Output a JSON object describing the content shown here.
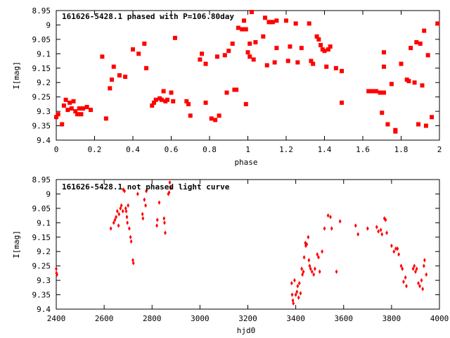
{
  "chart_data": [
    {
      "type": "scatter",
      "title": "161626-5428.1 phased with P=106.80day",
      "xlabel": "phase",
      "ylabel": "I[mag]",
      "xlim": [
        0,
        2
      ],
      "ylim": [
        9.4,
        8.95
      ],
      "y_reversed": true,
      "grid": false,
      "xticks": [
        "0",
        "0.2",
        "0.4",
        "0.6",
        "0.8",
        "1",
        "1.2",
        "1.4",
        "1.6",
        "1.8",
        "2"
      ],
      "xtick_values": [
        0,
        0.2,
        0.4,
        0.6,
        0.8,
        1.0,
        1.2,
        1.4,
        1.6,
        1.8,
        2.0
      ],
      "yticks": [
        "8.95",
        "9",
        "9.05",
        "9.1",
        "9.15",
        "9.2",
        "9.25",
        "9.3",
        "9.35",
        "9.4"
      ],
      "ytick_values": [
        8.95,
        9.0,
        9.05,
        9.1,
        9.15,
        9.2,
        9.25,
        9.3,
        9.35,
        9.4
      ],
      "series": [
        {
          "color": "#ff0000",
          "marker": "square",
          "points": [
            [
              0.0,
              9.32
            ],
            [
              0.01,
              9.31
            ],
            [
              0.03,
              9.345
            ],
            [
              0.04,
              9.28
            ],
            [
              0.05,
              9.26
            ],
            [
              0.06,
              9.295
            ],
            [
              0.07,
              9.27
            ],
            [
              0.08,
              9.29
            ],
            [
              0.09,
              9.265
            ],
            [
              0.1,
              9.3
            ],
            [
              0.11,
              9.31
            ],
            [
              0.12,
              9.29
            ],
            [
              0.13,
              9.31
            ],
            [
              0.14,
              9.29
            ],
            [
              0.16,
              9.285
            ],
            [
              0.18,
              9.295
            ],
            [
              0.24,
              9.11
            ],
            [
              0.26,
              9.325
            ],
            [
              0.28,
              9.22
            ],
            [
              0.29,
              9.19
            ],
            [
              0.3,
              9.145
            ],
            [
              0.33,
              9.175
            ],
            [
              0.36,
              9.18
            ],
            [
              0.4,
              9.085
            ],
            [
              0.43,
              9.1
            ],
            [
              0.46,
              9.065
            ],
            [
              0.47,
              9.15
            ],
            [
              0.5,
              9.28
            ],
            [
              0.51,
              9.27
            ],
            [
              0.52,
              9.26
            ],
            [
              0.54,
              9.255
            ],
            [
              0.55,
              9.26
            ],
            [
              0.56,
              9.23
            ],
            [
              0.57,
              9.265
            ],
            [
              0.58,
              9.26
            ],
            [
              0.6,
              9.235
            ],
            [
              0.61,
              9.265
            ],
            [
              0.62,
              9.045
            ],
            [
              0.68,
              9.265
            ],
            [
              0.69,
              9.275
            ],
            [
              0.7,
              9.315
            ],
            [
              0.75,
              9.12
            ],
            [
              0.76,
              9.1
            ],
            [
              0.78,
              9.135
            ],
            [
              0.78,
              9.27
            ],
            [
              0.81,
              9.325
            ],
            [
              0.83,
              9.33
            ],
            [
              0.84,
              9.11
            ],
            [
              0.85,
              9.315
            ],
            [
              0.88,
              9.105
            ],
            [
              0.89,
              9.235
            ],
            [
              0.9,
              9.09
            ],
            [
              0.92,
              9.065
            ],
            [
              0.93,
              9.225
            ],
            [
              0.94,
              9.225
            ],
            [
              0.95,
              9.01
            ],
            [
              0.97,
              9.015
            ],
            [
              0.98,
              8.985
            ],
            [
              0.99,
              9.015
            ],
            [
              0.99,
              9.275
            ],
            [
              1.0,
              9.095
            ],
            [
              1.01,
              9.065
            ],
            [
              1.01,
              9.11
            ],
            [
              1.02,
              8.955
            ],
            [
              1.03,
              9.12
            ],
            [
              1.04,
              9.06
            ],
            [
              1.08,
              9.04
            ],
            [
              1.09,
              8.975
            ],
            [
              1.1,
              9.14
            ],
            [
              1.11,
              8.99
            ],
            [
              1.12,
              8.99
            ],
            [
              1.13,
              8.99
            ],
            [
              1.14,
              9.13
            ],
            [
              1.15,
              9.08
            ],
            [
              1.15,
              8.985
            ],
            [
              1.2,
              8.985
            ],
            [
              1.21,
              9.125
            ],
            [
              1.22,
              9.075
            ],
            [
              1.25,
              8.995
            ],
            [
              1.26,
              9.13
            ],
            [
              1.28,
              9.08
            ],
            [
              1.32,
              8.995
            ],
            [
              1.33,
              9.125
            ],
            [
              1.34,
              9.135
            ],
            [
              1.36,
              9.04
            ],
            [
              1.37,
              9.05
            ],
            [
              1.38,
              9.07
            ],
            [
              1.39,
              9.085
            ],
            [
              1.4,
              9.09
            ],
            [
              1.41,
              9.145
            ],
            [
              1.42,
              9.085
            ],
            [
              1.43,
              9.075
            ],
            [
              1.46,
              9.15
            ],
            [
              1.49,
              9.27
            ],
            [
              1.49,
              9.16
            ],
            [
              1.63,
              9.23
            ],
            [
              1.64,
              9.23
            ],
            [
              1.65,
              9.23
            ],
            [
              1.67,
              9.23
            ],
            [
              1.69,
              9.235
            ],
            [
              1.7,
              9.305
            ],
            [
              1.71,
              9.235
            ],
            [
              1.71,
              9.145
            ],
            [
              1.71,
              9.095
            ],
            [
              1.73,
              9.345
            ],
            [
              1.75,
              9.205
            ],
            [
              1.77,
              9.365
            ],
            [
              1.77,
              9.37
            ],
            [
              1.8,
              9.135
            ],
            [
              1.83,
              9.19
            ],
            [
              1.84,
              9.195
            ],
            [
              1.85,
              9.08
            ],
            [
              1.87,
              9.2
            ],
            [
              1.88,
              9.06
            ],
            [
              1.89,
              9.345
            ],
            [
              1.9,
              9.065
            ],
            [
              1.91,
              9.21
            ],
            [
              1.92,
              9.02
            ],
            [
              1.93,
              9.35
            ],
            [
              1.94,
              9.105
            ],
            [
              1.96,
              9.32
            ],
            [
              1.99,
              8.995
            ]
          ]
        }
      ]
    },
    {
      "type": "scatter",
      "title": "161626-5428.1 not phased light curve",
      "xlabel": "hjd0",
      "ylabel": "I[mag]",
      "xlim": [
        2400,
        4000
      ],
      "ylim": [
        9.4,
        8.95
      ],
      "y_reversed": true,
      "grid": false,
      "xticks": [
        "2400",
        "2600",
        "2800",
        "3000",
        "3200",
        "3400",
        "3600",
        "3800",
        "4000"
      ],
      "xtick_values": [
        2400,
        2600,
        2800,
        3000,
        3200,
        3400,
        3600,
        3800,
        4000
      ],
      "yticks": [
        "8.95",
        "9",
        "9.05",
        "9.1",
        "9.15",
        "9.2",
        "9.25",
        "9.3",
        "9.35",
        "9.4"
      ],
      "ytick_values": [
        8.95,
        9.0,
        9.05,
        9.1,
        9.15,
        9.2,
        9.25,
        9.3,
        9.35,
        9.4
      ],
      "series": [
        {
          "color": "#ff0000",
          "marker": "diamond",
          "points": [
            [
              2400,
              9.26
            ],
            [
              2401,
              9.275
            ],
            [
              2403,
              9.28
            ],
            [
              2628,
              9.12
            ],
            [
              2640,
              9.1
            ],
            [
              2645,
              9.09
            ],
            [
              2650,
              9.08
            ],
            [
              2655,
              9.06
            ],
            [
              2660,
              9.11
            ],
            [
              2662,
              9.07
            ],
            [
              2668,
              9.05
            ],
            [
              2672,
              9.04
            ],
            [
              2678,
              9.06
            ],
            [
              2680,
              8.985
            ],
            [
              2685,
              8.99
            ],
            [
              2690,
              9.05
            ],
            [
              2692,
              9.06
            ],
            [
              2695,
              9.08
            ],
            [
              2697,
              9.1
            ],
            [
              2700,
              9.04
            ],
            [
              2705,
              9.12
            ],
            [
              2710,
              9.15
            ],
            [
              2713,
              9.165
            ],
            [
              2720,
              9.23
            ],
            [
              2722,
              9.24
            ],
            [
              2740,
              9.0
            ],
            [
              2760,
              9.07
            ],
            [
              2762,
              9.085
            ],
            [
              2768,
              9.02
            ],
            [
              2773,
              9.04
            ],
            [
              2776,
              8.99
            ],
            [
              2820,
              9.11
            ],
            [
              2822,
              9.09
            ],
            [
              2830,
              9.03
            ],
            [
              2850,
              9.085
            ],
            [
              2852,
              9.1
            ],
            [
              2855,
              9.135
            ],
            [
              2868,
              9.0
            ],
            [
              2871,
              8.995
            ],
            [
              2874,
              8.96
            ],
            [
              2878,
              8.98
            ],
            [
              3383,
              9.31
            ],
            [
              3385,
              9.35
            ],
            [
              3388,
              9.37
            ],
            [
              3390,
              9.38
            ],
            [
              3395,
              9.3
            ],
            [
              3400,
              9.35
            ],
            [
              3405,
              9.34
            ],
            [
              3408,
              9.32
            ],
            [
              3412,
              9.36
            ],
            [
              3415,
              9.31
            ],
            [
              3420,
              9.345
            ],
            [
              3425,
              9.26
            ],
            [
              3428,
              9.28
            ],
            [
              3432,
              9.27
            ],
            [
              3435,
              9.22
            ],
            [
              3440,
              9.17
            ],
            [
              3442,
              9.18
            ],
            [
              3446,
              9.175
            ],
            [
              3452,
              9.15
            ],
            [
              3455,
              9.23
            ],
            [
              3458,
              9.25
            ],
            [
              3462,
              9.26
            ],
            [
              3468,
              9.27
            ],
            [
              3475,
              9.28
            ],
            [
              3480,
              9.26
            ],
            [
              3490,
              9.21
            ],
            [
              3495,
              9.22
            ],
            [
              3500,
              9.27
            ],
            [
              3510,
              9.2
            ],
            [
              3520,
              9.12
            ],
            [
              3535,
              9.075
            ],
            [
              3545,
              9.08
            ],
            [
              3550,
              9.12
            ],
            [
              3570,
              9.27
            ],
            [
              3585,
              9.095
            ],
            [
              3650,
              9.11
            ],
            [
              3660,
              9.14
            ],
            [
              3700,
              9.12
            ],
            [
              3738,
              9.115
            ],
            [
              3745,
              9.13
            ],
            [
              3755,
              9.125
            ],
            [
              3760,
              9.14
            ],
            [
              3770,
              9.085
            ],
            [
              3775,
              9.09
            ],
            [
              3780,
              9.135
            ],
            [
              3800,
              9.18
            ],
            [
              3810,
              9.2
            ],
            [
              3818,
              9.19
            ],
            [
              3825,
              9.19
            ],
            [
              3830,
              9.21
            ],
            [
              3840,
              9.25
            ],
            [
              3845,
              9.26
            ],
            [
              3850,
              9.305
            ],
            [
              3858,
              9.29
            ],
            [
              3862,
              9.32
            ],
            [
              3890,
              9.26
            ],
            [
              3895,
              9.25
            ],
            [
              3900,
              9.27
            ],
            [
              3905,
              9.26
            ],
            [
              3912,
              9.31
            ],
            [
              3918,
              9.32
            ],
            [
              3925,
              9.3
            ],
            [
              3930,
              9.33
            ],
            [
              3935,
              9.25
            ],
            [
              3938,
              9.23
            ],
            [
              3945,
              9.28
            ]
          ]
        }
      ]
    }
  ]
}
